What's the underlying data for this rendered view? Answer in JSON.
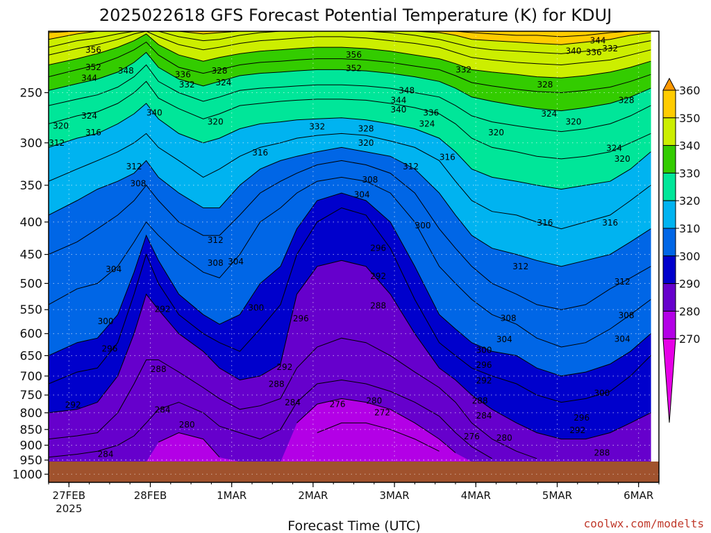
{
  "chart_data": {
    "type": "heatmap",
    "title": "2025022618 GFS Forecast Potential Temperature (K) for KDUJ",
    "xlabel": "Forecast Time (UTC)",
    "ylabel": "",
    "credit": "coolwx.com/modelts",
    "y_axis": {
      "unit": "hPa",
      "reversed": true,
      "ticks": [
        250,
        300,
        350,
        400,
        450,
        500,
        550,
        600,
        650,
        700,
        750,
        800,
        850,
        900,
        950,
        1000
      ],
      "ylim": [
        200,
        1030
      ]
    },
    "x_axis": {
      "unit": "days from 26FEB 18Z",
      "xlim": [
        0,
        7.5
      ],
      "ticks": [
        {
          "x": 0.25,
          "label": "27FEB",
          "sublabel": "2025"
        },
        {
          "x": 1.25,
          "label": "28FEB"
        },
        {
          "x": 2.25,
          "label": "1MAR"
        },
        {
          "x": 3.25,
          "label": "2MAR"
        },
        {
          "x": 4.25,
          "label": "3MAR"
        },
        {
          "x": 5.25,
          "label": "4MAR"
        },
        {
          "x": 6.25,
          "label": "5MAR"
        },
        {
          "x": 7.25,
          "label": "6MAR"
        }
      ],
      "grid": true
    },
    "colorbar": {
      "levels": [
        270,
        280,
        290,
        300,
        310,
        320,
        330,
        340,
        350,
        360
      ],
      "colors": [
        "#e600e6",
        "#b300e6",
        "#6600cc",
        "#0000cc",
        "#0066e6",
        "#00b3f0",
        "#00e699",
        "#33cc00",
        "#ccee00",
        "#ffcc00",
        "#ff9900"
      ],
      "extend": "both"
    },
    "contour_interval": 4,
    "ground_color": "#a0522d",
    "ground_pressure": 955,
    "sample_times": [
      0,
      0.35,
      0.6,
      0.85,
      1.05,
      1.2,
      1.35,
      1.6,
      1.9,
      2.1,
      2.35,
      2.6,
      2.85,
      3.05,
      3.3,
      3.6,
      3.9,
      4.2,
      4.5,
      4.8,
      5.0,
      5.2,
      5.45,
      5.75,
      6.0,
      6.3,
      6.6,
      6.9,
      7.15,
      7.4
    ],
    "isentrope_pressure_hPa": {
      "276": [
        null,
        null,
        null,
        null,
        null,
        null,
        null,
        null,
        null,
        null,
        null,
        null,
        null,
        null,
        860,
        830,
        830,
        850,
        880,
        920,
        null,
        null,
        null,
        null,
        null,
        null,
        null,
        null,
        null,
        null
      ],
      "280": [
        null,
        null,
        null,
        null,
        null,
        null,
        890,
        860,
        880,
        940,
        null,
        null,
        null,
        830,
        775,
        760,
        770,
        790,
        830,
        880,
        925,
        null,
        null,
        null,
        null,
        null,
        null,
        null,
        null,
        null
      ],
      "284": [
        940,
        930,
        920,
        900,
        870,
        830,
        790,
        770,
        800,
        840,
        860,
        880,
        850,
        770,
        720,
        710,
        720,
        740,
        770,
        810,
        860,
        905,
        945,
        null,
        null,
        null,
        null,
        null,
        null,
        null
      ],
      "288": [
        880,
        870,
        860,
        800,
        720,
        660,
        660,
        690,
        730,
        760,
        790,
        780,
        760,
        680,
        630,
        610,
        620,
        650,
        690,
        730,
        770,
        830,
        880,
        920,
        945,
        null,
        null,
        null,
        null,
        null
      ],
      "292": [
        800,
        790,
        770,
        700,
        600,
        520,
        550,
        600,
        640,
        680,
        710,
        700,
        670,
        520,
        470,
        460,
        470,
        520,
        600,
        680,
        710,
        750,
        790,
        830,
        860,
        880,
        880,
        860,
        830,
        800
      ],
      "296": [
        720,
        690,
        680,
        620,
        520,
        450,
        500,
        560,
        600,
        620,
        640,
        590,
        540,
        450,
        400,
        380,
        390,
        440,
        530,
        620,
        650,
        680,
        700,
        720,
        750,
        770,
        760,
        740,
        700,
        650
      ],
      "300": [
        650,
        620,
        610,
        560,
        480,
        420,
        460,
        520,
        560,
        580,
        560,
        500,
        470,
        410,
        370,
        360,
        370,
        400,
        470,
        560,
        590,
        620,
        640,
        650,
        680,
        700,
        690,
        670,
        640,
        600
      ],
      "304": [
        540,
        510,
        500,
        470,
        430,
        400,
        420,
        450,
        480,
        490,
        450,
        400,
        380,
        360,
        345,
        340,
        345,
        360,
        400,
        470,
        500,
        530,
        560,
        580,
        610,
        630,
        620,
        590,
        560,
        530
      ],
      "308": [
        450,
        430,
        410,
        390,
        370,
        350,
        370,
        400,
        420,
        420,
        390,
        360,
        345,
        335,
        325,
        320,
        325,
        335,
        360,
        410,
        440,
        470,
        500,
        520,
        540,
        550,
        540,
        510,
        490,
        470
      ],
      "312": [
        390,
        370,
        355,
        345,
        335,
        320,
        340,
        360,
        380,
        380,
        350,
        330,
        320,
        315,
        310,
        305,
        310,
        315,
        330,
        360,
        390,
        420,
        440,
        450,
        460,
        470,
        460,
        450,
        430,
        410
      ],
      "316": [
        345,
        330,
        320,
        310,
        300,
        290,
        305,
        320,
        340,
        330,
        315,
        305,
        300,
        295,
        292,
        290,
        292,
        298,
        305,
        320,
        345,
        370,
        385,
        390,
        400,
        410,
        400,
        390,
        370,
        350
      ],
      "320": [
        305,
        295,
        290,
        280,
        270,
        260,
        275,
        290,
        300,
        295,
        285,
        280,
        278,
        276,
        275,
        274,
        276,
        280,
        285,
        295,
        310,
        330,
        340,
        345,
        350,
        355,
        350,
        345,
        330,
        310
      ],
      "324": [
        280,
        272,
        268,
        260,
        250,
        240,
        255,
        265,
        275,
        270,
        262,
        260,
        258,
        257,
        256,
        256,
        257,
        260,
        264,
        270,
        280,
        295,
        305,
        310,
        315,
        318,
        315,
        310,
        300,
        290
      ],
      "328": [
        262,
        256,
        252,
        245,
        236,
        226,
        240,
        250,
        258,
        254,
        248,
        246,
        245,
        244,
        243,
        243,
        244,
        246,
        250,
        254,
        262,
        272,
        278,
        282,
        285,
        288,
        285,
        280,
        272,
        262
      ],
      "332": [
        248,
        242,
        238,
        232,
        224,
        216,
        228,
        238,
        244,
        240,
        235,
        233,
        232,
        231,
        230,
        230,
        231,
        233,
        236,
        240,
        246,
        254,
        258,
        262,
        265,
        267,
        264,
        260,
        254,
        246
      ],
      "336": [
        236,
        230,
        226,
        220,
        214,
        208,
        218,
        228,
        233,
        230,
        226,
        224,
        223,
        222,
        221,
        221,
        222,
        224,
        227,
        230,
        235,
        241,
        244,
        247,
        249,
        250,
        248,
        245,
        240,
        234
      ],
      "340": [
        226,
        221,
        217,
        212,
        207,
        202,
        210,
        218,
        223,
        220,
        217,
        215,
        214,
        213,
        212,
        212,
        213,
        215,
        218,
        221,
        225,
        230,
        232,
        234,
        236,
        237,
        235,
        232,
        228,
        223
      ],
      "344": [
        218,
        213,
        210,
        206,
        202,
        200,
        204,
        210,
        214,
        212,
        209,
        207,
        206,
        205,
        204,
        204,
        205,
        207,
        209,
        212,
        216,
        220,
        222,
        224,
        225,
        226,
        224,
        222,
        218,
        214
      ],
      "348": [
        212,
        207,
        205,
        202,
        200,
        200,
        200,
        204,
        207,
        206,
        203,
        201,
        200,
        200,
        200,
        200,
        200,
        201,
        203,
        206,
        209,
        212,
        214,
        215,
        216,
        217,
        215,
        213,
        210,
        207
      ],
      "352": [
        206,
        202,
        200,
        200,
        200,
        200,
        200,
        200,
        202,
        201,
        200,
        200,
        200,
        200,
        200,
        200,
        200,
        200,
        200,
        201,
        203,
        206,
        207,
        208,
        209,
        210,
        208,
        206,
        203,
        201
      ],
      "356": [
        201,
        200,
        200,
        200,
        200,
        200,
        200,
        200,
        200,
        200,
        200,
        200,
        200,
        200,
        200,
        200,
        200,
        200,
        200,
        200,
        200,
        201,
        202,
        203,
        203,
        204,
        203,
        201,
        200,
        200
      ]
    },
    "contour_labels": [
      {
        "v": "356",
        "t": 0.55,
        "p": 214
      },
      {
        "v": "352",
        "t": 0.55,
        "p": 228
      },
      {
        "v": "344",
        "t": 0.5,
        "p": 237
      },
      {
        "v": "348",
        "t": 0.95,
        "p": 231
      },
      {
        "v": "336",
        "t": 1.65,
        "p": 234
      },
      {
        "v": "332",
        "t": 1.7,
        "p": 243
      },
      {
        "v": "328",
        "t": 2.1,
        "p": 231
      },
      {
        "v": "324",
        "t": 2.15,
        "p": 241
      },
      {
        "v": "340",
        "t": 1.3,
        "p": 269
      },
      {
        "v": "320",
        "t": 0.15,
        "p": 282
      },
      {
        "v": "324",
        "t": 0.5,
        "p": 272
      },
      {
        "v": "316",
        "t": 0.55,
        "p": 289
      },
      {
        "v": "312",
        "t": 0.1,
        "p": 300
      },
      {
        "v": "320",
        "t": 2.05,
        "p": 278
      },
      {
        "v": "312",
        "t": 1.05,
        "p": 327
      },
      {
        "v": "308",
        "t": 1.1,
        "p": 348
      },
      {
        "v": "316",
        "t": 2.6,
        "p": 311
      },
      {
        "v": "356",
        "t": 3.75,
        "p": 218
      },
      {
        "v": "352",
        "t": 3.75,
        "p": 229
      },
      {
        "v": "348",
        "t": 4.4,
        "p": 248
      },
      {
        "v": "344",
        "t": 4.3,
        "p": 257
      },
      {
        "v": "340",
        "t": 4.3,
        "p": 266
      },
      {
        "v": "336",
        "t": 4.7,
        "p": 269
      },
      {
        "v": "332",
        "t": 3.3,
        "p": 283
      },
      {
        "v": "328",
        "t": 3.9,
        "p": 285
      },
      {
        "v": "324",
        "t": 4.65,
        "p": 280
      },
      {
        "v": "320",
        "t": 3.9,
        "p": 300
      },
      {
        "v": "312",
        "t": 4.45,
        "p": 327
      },
      {
        "v": "316",
        "t": 4.9,
        "p": 316
      },
      {
        "v": "308",
        "t": 3.95,
        "p": 343
      },
      {
        "v": "304",
        "t": 3.85,
        "p": 362
      },
      {
        "v": "300",
        "t": 4.6,
        "p": 405
      },
      {
        "v": "296",
        "t": 4.05,
        "p": 440
      },
      {
        "v": "292",
        "t": 4.05,
        "p": 487
      },
      {
        "v": "288",
        "t": 4.05,
        "p": 542
      },
      {
        "v": "332",
        "t": 5.1,
        "p": 230
      },
      {
        "v": "328",
        "t": 6.1,
        "p": 243
      },
      {
        "v": "324",
        "t": 6.15,
        "p": 270
      },
      {
        "v": "320",
        "t": 5.5,
        "p": 289
      },
      {
        "v": "320",
        "t": 6.45,
        "p": 278
      },
      {
        "v": "340",
        "t": 6.45,
        "p": 215
      },
      {
        "v": "336",
        "t": 6.7,
        "p": 216
      },
      {
        "v": "344",
        "t": 6.75,
        "p": 207
      },
      {
        "v": "332",
        "t": 6.9,
        "p": 213
      },
      {
        "v": "328",
        "t": 7.1,
        "p": 257
      },
      {
        "v": "324",
        "t": 6.95,
        "p": 306
      },
      {
        "v": "320",
        "t": 7.05,
        "p": 318
      },
      {
        "v": "316",
        "t": 6.1,
        "p": 401
      },
      {
        "v": "316",
        "t": 6.9,
        "p": 401
      },
      {
        "v": "312",
        "t": 5.8,
        "p": 470
      },
      {
        "v": "312",
        "t": 7.05,
        "p": 497
      },
      {
        "v": "308",
        "t": 5.65,
        "p": 567
      },
      {
        "v": "308",
        "t": 7.1,
        "p": 562
      },
      {
        "v": "304",
        "t": 5.6,
        "p": 613
      },
      {
        "v": "304",
        "t": 7.05,
        "p": 612
      },
      {
        "v": "300",
        "t": 5.35,
        "p": 637
      },
      {
        "v": "300",
        "t": 6.8,
        "p": 745
      },
      {
        "v": "296",
        "t": 5.35,
        "p": 673
      },
      {
        "v": "296",
        "t": 6.55,
        "p": 815
      },
      {
        "v": "292",
        "t": 5.35,
        "p": 712
      },
      {
        "v": "292",
        "t": 6.5,
        "p": 853
      },
      {
        "v": "288",
        "t": 5.3,
        "p": 766
      },
      {
        "v": "288",
        "t": 6.8,
        "p": 925
      },
      {
        "v": "284",
        "t": 5.35,
        "p": 809
      },
      {
        "v": "280",
        "t": 5.6,
        "p": 876
      },
      {
        "v": "276",
        "t": 5.2,
        "p": 872
      },
      {
        "v": "280",
        "t": 4.0,
        "p": 766
      },
      {
        "v": "276",
        "t": 3.55,
        "p": 776
      },
      {
        "v": "272",
        "t": 4.1,
        "p": 799
      },
      {
        "v": "284",
        "t": 3.0,
        "p": 771
      },
      {
        "v": "288",
        "t": 2.8,
        "p": 721
      },
      {
        "v": "292",
        "t": 2.9,
        "p": 678
      },
      {
        "v": "296",
        "t": 3.1,
        "p": 568
      },
      {
        "v": "300",
        "t": 2.55,
        "p": 546
      },
      {
        "v": "304",
        "t": 2.3,
        "p": 462
      },
      {
        "v": "308",
        "t": 2.05,
        "p": 464
      },
      {
        "v": "312",
        "t": 2.05,
        "p": 427
      },
      {
        "v": "304",
        "t": 0.8,
        "p": 475
      },
      {
        "v": "300",
        "t": 0.7,
        "p": 574
      },
      {
        "v": "292",
        "t": 1.4,
        "p": 549
      },
      {
        "v": "296",
        "t": 0.75,
        "p": 634
      },
      {
        "v": "288",
        "t": 1.35,
        "p": 683
      },
      {
        "v": "284",
        "t": 1.4,
        "p": 791
      },
      {
        "v": "280",
        "t": 1.7,
        "p": 836
      },
      {
        "v": "292",
        "t": 0.3,
        "p": 778
      },
      {
        "v": "284",
        "t": 0.7,
        "p": 930
      }
    ]
  }
}
